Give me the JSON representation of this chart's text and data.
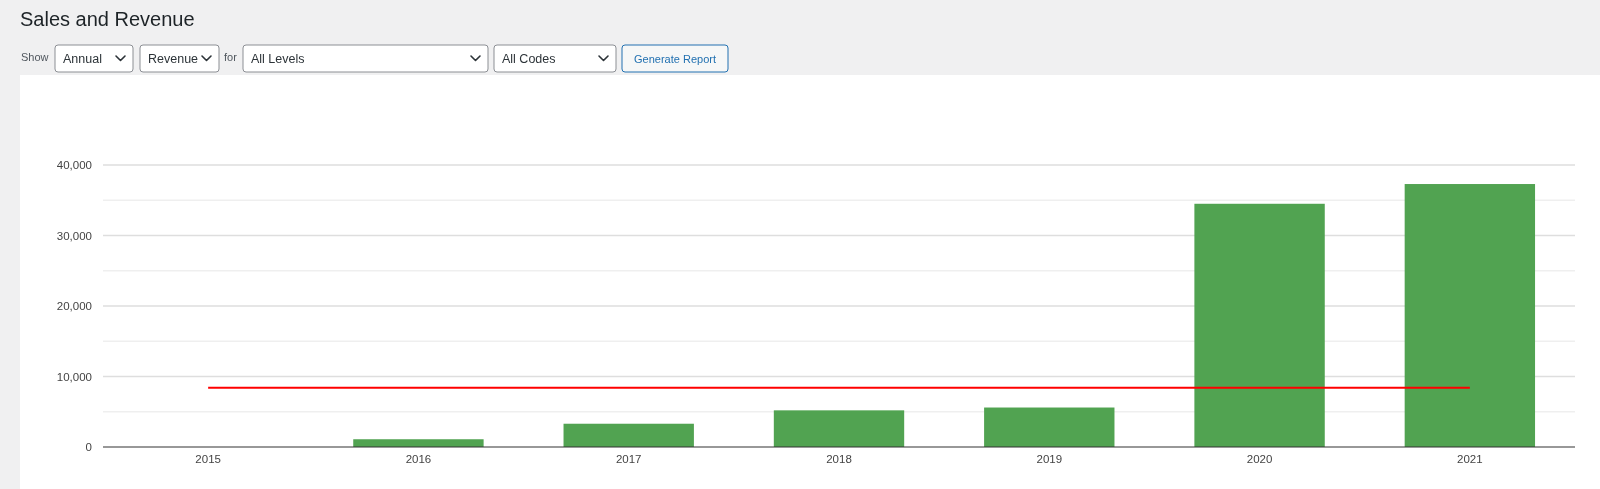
{
  "chart_data": {
    "type": "bar",
    "title": "Sales and Revenue",
    "annotations": [
      "Show",
      "Annual",
      "Revenue",
      "for",
      "All Levels",
      "All Codes",
      "Generate Report"
    ],
    "categories": [
      "2015",
      "2016",
      "2017",
      "2018",
      "2019",
      "2020",
      "2021"
    ],
    "series": [
      {
        "color": "#51a351",
        "values": [
          0,
          1100,
          3300,
          5200,
          5600,
          34500,
          37300
        ]
      },
      {
        "type": "line",
        "color": "#ff0000",
        "values": [
          8400,
          8400,
          8400,
          8400,
          8400,
          8400,
          8400
        ]
      }
    ],
    "ylim": [
      0,
      40000
    ],
    "yticks": [
      0,
      {
        "value": 5000,
        "label": null
      },
      {
        "value": 10000,
        "label": "10,000"
      },
      {
        "value": 15000,
        "label": null
      },
      {
        "value": 20000,
        "label": "20,000"
      },
      {
        "value": 25000,
        "label": null
      },
      {
        "value": 30000,
        "label": "30,000"
      },
      {
        "value": 35000,
        "label": null
      },
      {
        "value": 40000,
        "label": "40,000"
      }
    ],
    "grid": "y"
  }
}
